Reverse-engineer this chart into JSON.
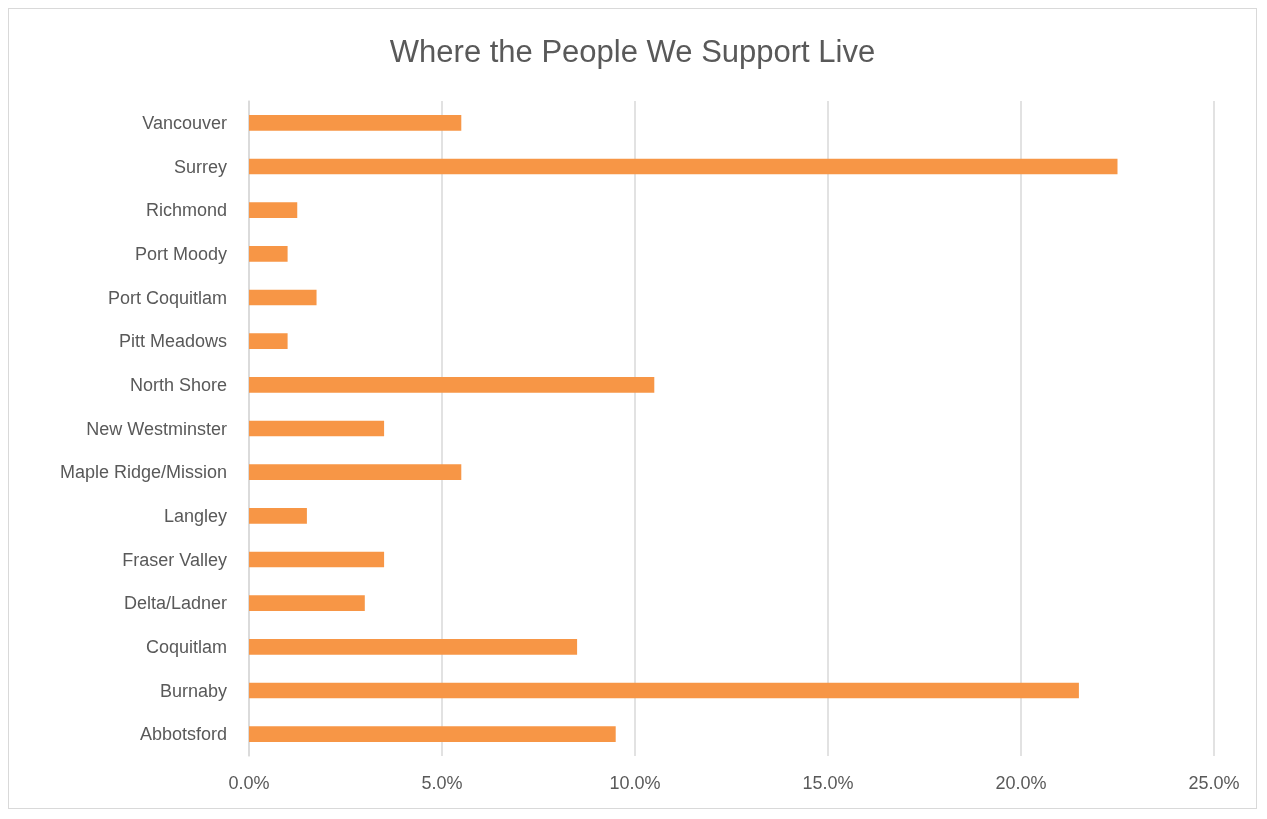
{
  "chart_data": {
    "type": "bar",
    "orientation": "horizontal",
    "title": "Where the People We Support Live",
    "categories": [
      "Vancouver",
      "Surrey",
      "Richmond",
      "Port Moody",
      "Port Coquitlam",
      "Pitt Meadows",
      "North Shore",
      "New Westminster",
      "Maple Ridge/Mission",
      "Langley",
      "Fraser Valley",
      "Delta/Ladner",
      "Coquitlam",
      "Burnaby",
      "Abbotsford"
    ],
    "values": [
      5.5,
      22.5,
      1.25,
      1.0,
      1.75,
      1.0,
      10.5,
      3.5,
      5.5,
      1.5,
      3.5,
      3.0,
      8.5,
      21.5,
      9.5
    ],
    "color": "#f79646",
    "xlim": [
      0,
      25
    ],
    "xticks": [
      {
        "value": 0,
        "label": "0.0%"
      },
      {
        "value": 5,
        "label": "5.0%"
      },
      {
        "value": 10,
        "label": "10.0%"
      },
      {
        "value": 15,
        "label": "15.0%"
      },
      {
        "value": 20,
        "label": "20.0%"
      },
      {
        "value": 25,
        "label": "25.0%"
      }
    ],
    "grid": "x"
  }
}
